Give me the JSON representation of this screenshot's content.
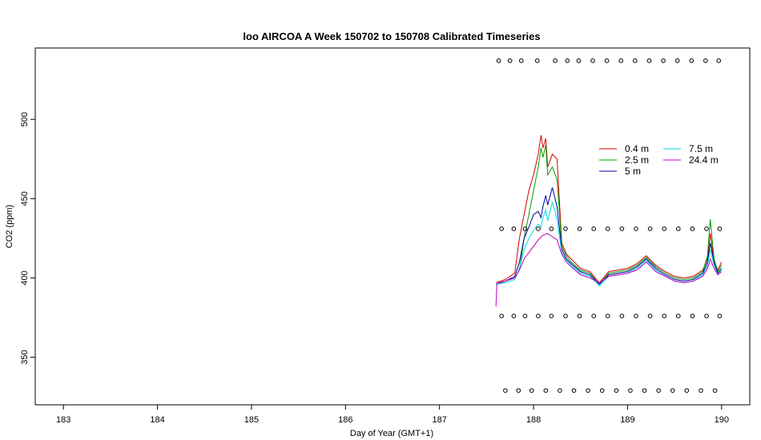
{
  "chart_data": {
    "type": "line",
    "title": "loo AIRCOA A  Week 150702 to 150708  Calibrated Timeseries",
    "xlabel": "Day of Year (GMT+1)",
    "ylabel": "CO2 (ppm)",
    "xlim": [
      182.7,
      190.3
    ],
    "ylim": [
      320,
      545
    ],
    "x_ticks": [
      183,
      184,
      185,
      186,
      187,
      188,
      189,
      190
    ],
    "y_ticks": [
      350,
      400,
      450,
      500
    ],
    "grid": false,
    "legend_position": "top-right",
    "legend": [
      {
        "label": "0.4 m",
        "color": "#d40000"
      },
      {
        "label": "2.5 m",
        "color": "#00a000"
      },
      {
        "label": "5 m",
        "color": "#0000a0"
      },
      {
        "label": "7.5 m",
        "color": "#00d8e0"
      },
      {
        "label": "24.4 m",
        "color": "#c000c0"
      }
    ],
    "series": [
      {
        "name": "0.4 m",
        "color": "#d40000",
        "x": [
          187.6,
          187.7,
          187.8,
          187.85,
          187.9,
          187.95,
          188.0,
          188.05,
          188.08,
          188.1,
          188.13,
          188.15,
          188.2,
          188.25,
          188.3,
          188.35,
          188.4,
          188.5,
          188.6,
          188.7,
          188.8,
          188.9,
          189.0,
          189.1,
          189.2,
          189.3,
          189.4,
          189.5,
          189.6,
          189.7,
          189.8,
          189.85,
          189.88,
          189.92,
          189.96,
          190.0
        ],
        "y": [
          397,
          399,
          403,
          425,
          440,
          455,
          465,
          478,
          490,
          482,
          488,
          470,
          478,
          475,
          422,
          415,
          412,
          406,
          404,
          397,
          404,
          405,
          406,
          409,
          414,
          408,
          404,
          401,
          400,
          401,
          405,
          412,
          428,
          410,
          405,
          410
        ]
      },
      {
        "name": "2.5 m",
        "color": "#00a000",
        "x": [
          187.6,
          187.7,
          187.8,
          187.85,
          187.9,
          187.95,
          188.0,
          188.05,
          188.08,
          188.1,
          188.13,
          188.15,
          188.2,
          188.25,
          188.3,
          188.35,
          188.4,
          188.5,
          188.6,
          188.7,
          188.8,
          188.9,
          189.0,
          189.1,
          189.2,
          189.3,
          189.4,
          189.5,
          189.6,
          189.7,
          189.8,
          189.85,
          189.88,
          189.92,
          189.96,
          190.0
        ],
        "y": [
          396,
          398,
          400,
          405,
          425,
          440,
          455,
          470,
          482,
          476,
          484,
          465,
          470,
          462,
          420,
          414,
          410,
          405,
          403,
          396,
          403,
          404,
          405,
          408,
          413,
          407,
          403,
          400,
          399,
          400,
          404,
          414,
          437,
          412,
          404,
          408
        ]
      },
      {
        "name": "5 m",
        "color": "#0000a0",
        "x": [
          187.6,
          187.7,
          187.8,
          187.85,
          187.9,
          187.95,
          188.0,
          188.05,
          188.08,
          188.1,
          188.13,
          188.15,
          188.2,
          188.25,
          188.3,
          188.35,
          188.4,
          188.5,
          188.6,
          188.7,
          188.8,
          188.9,
          189.0,
          189.1,
          189.2,
          189.3,
          189.4,
          189.5,
          189.6,
          189.7,
          189.8,
          189.85,
          189.88,
          189.92,
          189.96,
          190.0
        ],
        "y": [
          396,
          398,
          401,
          410,
          425,
          432,
          440,
          442,
          438,
          445,
          452,
          446,
          457,
          445,
          418,
          412,
          409,
          404,
          402,
          396,
          402,
          403,
          404,
          407,
          412,
          406,
          402,
          399,
          398,
          399,
          403,
          410,
          422,
          410,
          403,
          406
        ]
      },
      {
        "name": "7.5 m",
        "color": "#00d8e0",
        "x": [
          187.6,
          187.7,
          187.8,
          187.85,
          187.9,
          187.95,
          188.0,
          188.05,
          188.08,
          188.1,
          188.13,
          188.15,
          188.2,
          188.25,
          188.3,
          188.35,
          188.4,
          188.5,
          188.6,
          188.7,
          188.8,
          188.9,
          189.0,
          189.1,
          189.2,
          189.3,
          189.4,
          189.5,
          189.6,
          189.7,
          189.8,
          189.85,
          189.88,
          189.92,
          189.96,
          190.0
        ],
        "y": [
          396,
          397,
          399,
          406,
          418,
          425,
          430,
          434,
          432,
          438,
          443,
          436,
          448,
          437,
          416,
          411,
          408,
          403,
          401,
          395,
          401,
          402,
          403,
          406,
          411,
          405,
          401,
          398,
          397,
          398,
          402,
          408,
          418,
          408,
          402,
          405
        ]
      },
      {
        "name": "24.4 m",
        "color": "#c000c0",
        "x": [
          187.6,
          187.61,
          187.63,
          187.7,
          187.8,
          187.85,
          187.9,
          187.95,
          188.0,
          188.05,
          188.1,
          188.15,
          188.2,
          188.25,
          188.3,
          188.35,
          188.4,
          188.5,
          188.6,
          188.7,
          188.8,
          188.9,
          189.0,
          189.1,
          189.2,
          189.3,
          189.4,
          189.5,
          189.6,
          189.7,
          189.8,
          189.85,
          189.88,
          189.92,
          189.96,
          190.0
        ],
        "y": [
          382,
          396,
          397,
          398,
          400,
          405,
          412,
          416,
          420,
          424,
          427,
          428,
          426,
          424,
          415,
          410,
          407,
          402,
          400,
          397,
          401,
          402,
          403,
          405,
          410,
          404,
          401,
          398,
          397,
          398,
          401,
          406,
          412,
          406,
          402,
          404
        ]
      }
    ],
    "marker_rows": [
      {
        "y": 537,
        "x": [
          187.63,
          187.75,
          187.87,
          188.04,
          188.23,
          188.36,
          188.48,
          188.63,
          188.78,
          188.93,
          189.08,
          189.23,
          189.38,
          189.53,
          189.68,
          189.83,
          189.97
        ]
      },
      {
        "y": 431,
        "x": [
          187.66,
          187.79,
          187.91,
          188.05,
          188.19,
          188.34,
          188.49,
          188.64,
          188.79,
          188.94,
          189.09,
          189.24,
          189.39,
          189.54,
          189.69,
          189.84,
          189.98
        ]
      },
      {
        "y": 376,
        "x": [
          187.66,
          187.79,
          187.91,
          188.05,
          188.19,
          188.34,
          188.49,
          188.64,
          188.79,
          188.94,
          189.09,
          189.24,
          189.39,
          189.54,
          189.69,
          189.84,
          189.98
        ]
      },
      {
        "y": 329,
        "x": [
          187.7,
          187.84,
          187.98,
          188.13,
          188.28,
          188.43,
          188.58,
          188.73,
          188.88,
          189.03,
          189.18,
          189.33,
          189.48,
          189.63,
          189.78,
          189.93
        ]
      }
    ]
  }
}
